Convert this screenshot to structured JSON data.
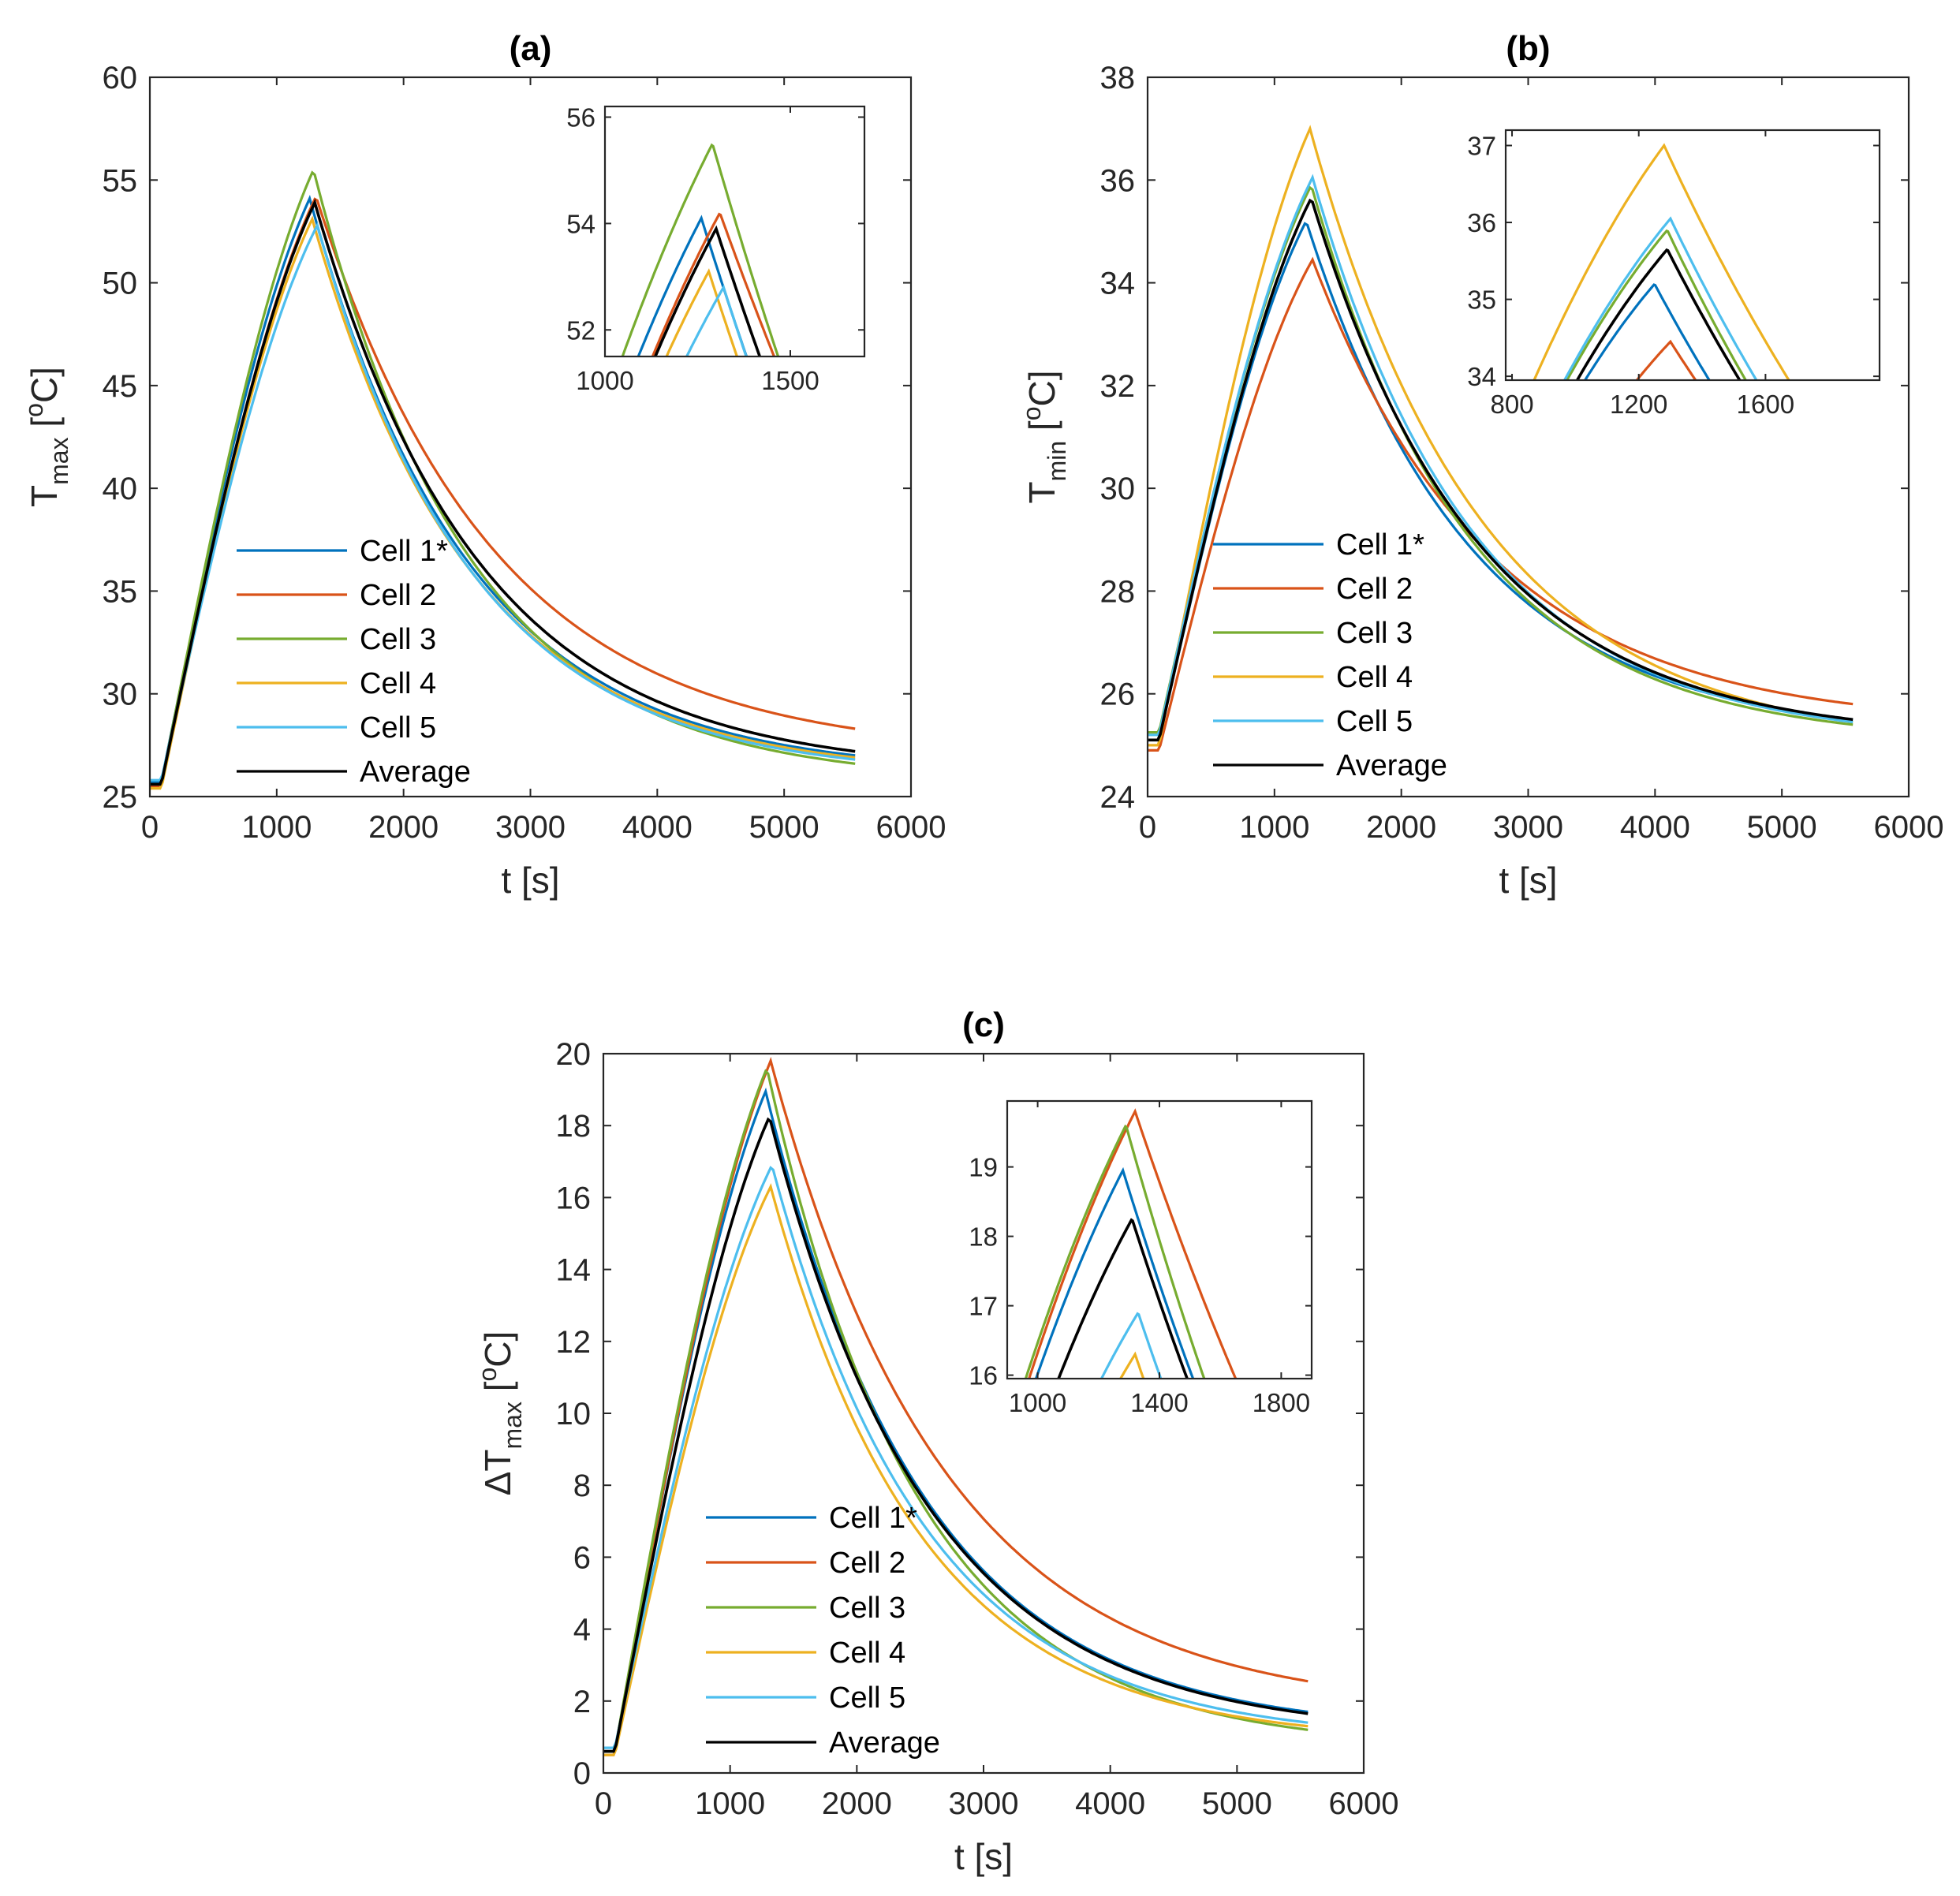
{
  "figure": {
    "description_free": true
  },
  "chart_data": [
    {
      "id": "a",
      "type": "line",
      "title": "(a)",
      "xlabel": "t [s]",
      "ylabel": {
        "base": "T",
        "sub": "max",
        "unit": " [",
        "sup": "o",
        "tail": "C]"
      },
      "xlim": [
        0,
        6000
      ],
      "ylim": [
        25,
        60
      ],
      "xticks": [
        0,
        1000,
        2000,
        3000,
        4000,
        5000,
        6000
      ],
      "yticks": [
        25,
        30,
        35,
        40,
        45,
        50,
        55,
        60
      ],
      "legend": {
        "position": "lower-left",
        "entries": [
          "Cell 1*",
          "Cell 2",
          "Cell 3",
          "Cell 4",
          "Cell 5",
          "Average"
        ]
      },
      "series": [
        {
          "name": "Cell 1*",
          "color": "#0072BD",
          "start": 25.7,
          "peak_t": 1260,
          "peak": 54.1,
          "end": 27.0,
          "k": 1250
        },
        {
          "name": "Cell 2",
          "color": "#D95319",
          "start": 25.5,
          "peak_t": 1310,
          "peak": 54.2,
          "end": 28.3,
          "k": 1400
        },
        {
          "name": "Cell 3",
          "color": "#77AC30",
          "start": 25.6,
          "peak_t": 1290,
          "peak": 55.5,
          "end": 26.6,
          "k": 1230
        },
        {
          "name": "Cell 4",
          "color": "#EDB120",
          "start": 25.4,
          "peak_t": 1280,
          "peak": 53.1,
          "end": 26.9,
          "k": 1250
        },
        {
          "name": "Cell 5",
          "color": "#4DBEEE",
          "start": 25.8,
          "peak_t": 1320,
          "peak": 52.8,
          "end": 26.8,
          "k": 1230
        },
        {
          "name": "Average",
          "color": "#000000",
          "start": 25.6,
          "peak_t": 1300,
          "peak": 53.9,
          "end": 27.2,
          "k": 1300
        }
      ],
      "inset": {
        "xlim": [
          1000,
          1700
        ],
        "ylim": [
          51.5,
          56.2
        ],
        "xticks": [
          1000,
          1500
        ],
        "yticks": [
          52,
          54,
          56
        ]
      }
    },
    {
      "id": "b",
      "type": "line",
      "title": "(b)",
      "xlabel": "t [s]",
      "ylabel": {
        "base": "T",
        "sub": "min",
        "unit": " [",
        "sup": "o",
        "tail": "C]"
      },
      "xlim": [
        0,
        6000
      ],
      "ylim": [
        24,
        38
      ],
      "xticks": [
        0,
        1000,
        2000,
        3000,
        4000,
        5000,
        6000
      ],
      "yticks": [
        24,
        26,
        28,
        30,
        32,
        34,
        36,
        38
      ],
      "legend": {
        "position": "lower-left",
        "entries": [
          "Cell 1*",
          "Cell 2",
          "Cell 3",
          "Cell 4",
          "Cell 5",
          "Average"
        ]
      },
      "series": [
        {
          "name": "Cell 1*",
          "color": "#0072BD",
          "start": 25.1,
          "peak_t": 1250,
          "peak": 35.2,
          "end": 25.5,
          "k": 1300
        },
        {
          "name": "Cell 2",
          "color": "#D95319",
          "start": 24.9,
          "peak_t": 1300,
          "peak": 34.45,
          "end": 25.8,
          "k": 1400
        },
        {
          "name": "Cell 3",
          "color": "#77AC30",
          "start": 25.25,
          "peak_t": 1290,
          "peak": 35.9,
          "end": 25.4,
          "k": 1250
        },
        {
          "name": "Cell 4",
          "color": "#EDB120",
          "start": 25.0,
          "peak_t": 1280,
          "peak": 37.0,
          "end": 25.45,
          "k": 1350
        },
        {
          "name": "Cell 5",
          "color": "#4DBEEE",
          "start": 25.2,
          "peak_t": 1300,
          "peak": 36.05,
          "end": 25.45,
          "k": 1280
        },
        {
          "name": "Average",
          "color": "#000000",
          "start": 25.1,
          "peak_t": 1290,
          "peak": 35.65,
          "end": 25.5,
          "k": 1300
        }
      ],
      "inset": {
        "xlim": [
          780,
          1960
        ],
        "ylim": [
          33.95,
          37.2
        ],
        "xticks": [
          800,
          1200,
          1600
        ],
        "yticks": [
          34,
          35,
          36,
          37
        ]
      }
    },
    {
      "id": "c",
      "type": "line",
      "title": "(c)",
      "xlabel": "t [s]",
      "ylabel": {
        "base": "ΔT",
        "sub": "max",
        "unit": " [",
        "sup": "o",
        "tail": "C]"
      },
      "xlim": [
        0,
        6000
      ],
      "ylim": [
        0,
        20
      ],
      "xticks": [
        0,
        1000,
        2000,
        3000,
        4000,
        5000,
        6000
      ],
      "yticks": [
        0,
        2,
        4,
        6,
        8,
        10,
        12,
        14,
        16,
        18,
        20
      ],
      "legend": {
        "position": "lower-left",
        "entries": [
          "Cell 1*",
          "Cell 2",
          "Cell 3",
          "Cell 4",
          "Cell 5",
          "Average"
        ]
      },
      "series": [
        {
          "name": "Cell 1*",
          "color": "#0072BD",
          "start": 0.6,
          "peak_t": 1280,
          "peak": 18.95,
          "end": 1.7,
          "k": 1250
        },
        {
          "name": "Cell 2",
          "color": "#D95319",
          "start": 0.5,
          "peak_t": 1320,
          "peak": 19.8,
          "end": 2.55,
          "k": 1380
        },
        {
          "name": "Cell 3",
          "color": "#77AC30",
          "start": 0.6,
          "peak_t": 1290,
          "peak": 19.6,
          "end": 1.2,
          "k": 1200
        },
        {
          "name": "Cell 4",
          "color": "#EDB120",
          "start": 0.5,
          "peak_t": 1320,
          "peak": 16.3,
          "end": 1.3,
          "k": 1200
        },
        {
          "name": "Cell 5",
          "color": "#4DBEEE",
          "start": 0.7,
          "peak_t": 1330,
          "peak": 16.9,
          "end": 1.4,
          "k": 1220
        },
        {
          "name": "Average",
          "color": "#000000",
          "start": 0.6,
          "peak_t": 1310,
          "peak": 18.25,
          "end": 1.65,
          "k": 1260
        }
      ],
      "inset": {
        "xlim": [
          900,
          1900
        ],
        "ylim": [
          15.95,
          19.95
        ],
        "xticks": [
          1000,
          1400,
          1800
        ],
        "yticks": [
          16,
          17,
          18,
          19
        ]
      }
    }
  ]
}
